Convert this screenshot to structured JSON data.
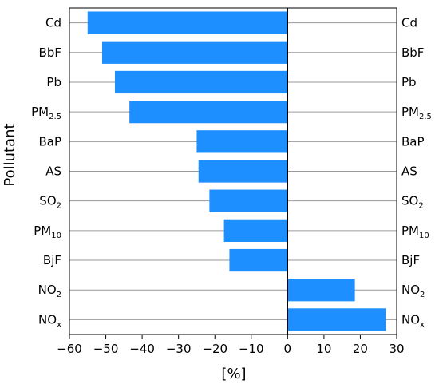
{
  "chart_data": {
    "type": "bar",
    "orientation": "horizontal",
    "xlabel": "[%]",
    "ylabel": "Pollutant",
    "xlim": [
      -60,
      30
    ],
    "xticks": [
      "−60",
      "−50",
      "−40",
      "−30",
      "−20",
      "−10",
      "0",
      "10",
      "20",
      "30"
    ],
    "xtick_values": [
      -60,
      -50,
      -40,
      -30,
      -20,
      -10,
      0,
      10,
      20,
      30
    ],
    "gridlines": "horizontal",
    "right_axis_labels": true,
    "bar_color": "#1e8fff",
    "categories": [
      {
        "base": "Cd",
        "sub": ""
      },
      {
        "base": "BbF",
        "sub": ""
      },
      {
        "base": "Pb",
        "sub": ""
      },
      {
        "base": "PM",
        "sub": "2.5"
      },
      {
        "base": "BaP",
        "sub": ""
      },
      {
        "base": "AS",
        "sub": ""
      },
      {
        "base": "SO",
        "sub": "2"
      },
      {
        "base": "PM",
        "sub": "10"
      },
      {
        "base": "BjF",
        "sub": ""
      },
      {
        "base": "NO",
        "sub": "2"
      },
      {
        "base": "NO",
        "sub": "x"
      }
    ],
    "values": [
      -55,
      -51,
      -47.5,
      -43.5,
      -25,
      -24.5,
      -21.5,
      -17.5,
      -16,
      18.5,
      27
    ]
  }
}
